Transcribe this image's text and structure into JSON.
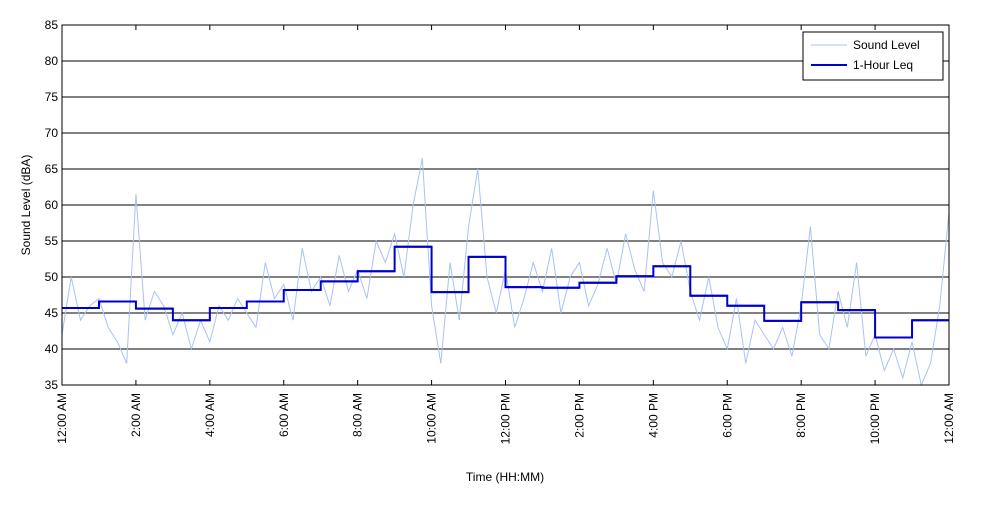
{
  "chart_data": {
    "type": "line",
    "xlabel": "Time (HH:MM)",
    "ylabel": "Sound Level (dBA)",
    "xlim": [
      0,
      24
    ],
    "xticks": [
      {
        "value": 0,
        "label": "12:00 AM"
      },
      {
        "value": 2,
        "label": "2:00 AM"
      },
      {
        "value": 4,
        "label": "4:00 AM"
      },
      {
        "value": 6,
        "label": "6:00 AM"
      },
      {
        "value": 8,
        "label": "8:00 AM"
      },
      {
        "value": 10,
        "label": "10:00 AM"
      },
      {
        "value": 12,
        "label": "12:00 PM"
      },
      {
        "value": 14,
        "label": "2:00 PM"
      },
      {
        "value": 16,
        "label": "4:00 PM"
      },
      {
        "value": 18,
        "label": "6:00 PM"
      },
      {
        "value": 20,
        "label": "8:00 PM"
      },
      {
        "value": 22,
        "label": "10:00 PM"
      },
      {
        "value": 24,
        "label": "12:00 AM"
      }
    ],
    "ylim": [
      35,
      85
    ],
    "yticks": [
      35,
      40,
      45,
      50,
      55,
      60,
      65,
      70,
      75,
      80,
      85
    ],
    "grid": true,
    "legend": "upper right",
    "series": [
      {
        "name": "Sound Level",
        "color": "#a9c2f5",
        "style": "line",
        "x": [
          0,
          0.25,
          0.5,
          0.75,
          1,
          1.25,
          1.5,
          1.75,
          2,
          2.25,
          2.5,
          2.75,
          3,
          3.25,
          3.5,
          3.75,
          4,
          4.25,
          4.5,
          4.75,
          5,
          5.25,
          5.5,
          5.75,
          6,
          6.25,
          6.5,
          6.75,
          7,
          7.25,
          7.5,
          7.75,
          8,
          8.25,
          8.5,
          8.75,
          9,
          9.25,
          9.5,
          9.75,
          10,
          10.25,
          10.5,
          10.75,
          11,
          11.25,
          11.5,
          11.75,
          12,
          12.25,
          12.5,
          12.75,
          13,
          13.25,
          13.5,
          13.75,
          14,
          14.25,
          14.5,
          14.75,
          15,
          15.25,
          15.5,
          15.75,
          16,
          16.25,
          16.5,
          16.75,
          17,
          17.25,
          17.5,
          17.75,
          18,
          18.25,
          18.5,
          18.75,
          19,
          19.25,
          19.5,
          19.75,
          20,
          20.25,
          20.5,
          20.75,
          21,
          21.25,
          21.5,
          21.75,
          22,
          22.25,
          22.5,
          22.75,
          23,
          23.25,
          23.5,
          23.75,
          24
        ],
        "values": [
          42,
          50,
          44,
          46,
          47,
          43,
          41,
          38,
          61.5,
          44,
          48,
          46,
          42,
          45,
          40,
          44,
          41,
          46,
          44,
          47,
          45,
          43,
          52,
          47,
          49,
          44,
          54,
          48,
          50,
          46,
          53,
          48,
          51,
          47,
          55,
          52,
          56,
          50,
          60,
          66.5,
          46,
          38,
          52,
          44,
          57,
          65,
          50,
          45,
          51,
          43,
          47,
          52,
          48,
          54,
          45,
          50,
          52,
          46,
          49,
          54,
          49,
          56,
          51,
          48,
          62,
          52,
          50,
          55,
          48,
          44,
          50,
          43,
          40,
          47,
          38,
          44,
          42,
          40,
          43,
          39,
          46,
          57,
          42,
          40,
          48,
          43,
          52,
          39,
          42,
          37,
          40,
          36,
          41,
          35,
          38,
          46,
          59
        ]
      },
      {
        "name": "1-Hour Leq",
        "color": "#0000cc",
        "style": "step",
        "x": [
          0,
          1,
          2,
          3,
          4,
          5,
          6,
          7,
          8,
          9,
          10,
          11,
          12,
          13,
          14,
          15,
          16,
          17,
          18,
          19,
          20,
          21,
          22,
          23
        ],
        "values": [
          45.7,
          46.6,
          45.6,
          44.0,
          45.7,
          46.6,
          48.2,
          49.4,
          50.8,
          54.2,
          47.9,
          52.8,
          48.6,
          48.5,
          49.2,
          50.1,
          51.5,
          47.4,
          46.0,
          43.9,
          46.5,
          45.4,
          41.6,
          44.0
        ]
      }
    ]
  }
}
